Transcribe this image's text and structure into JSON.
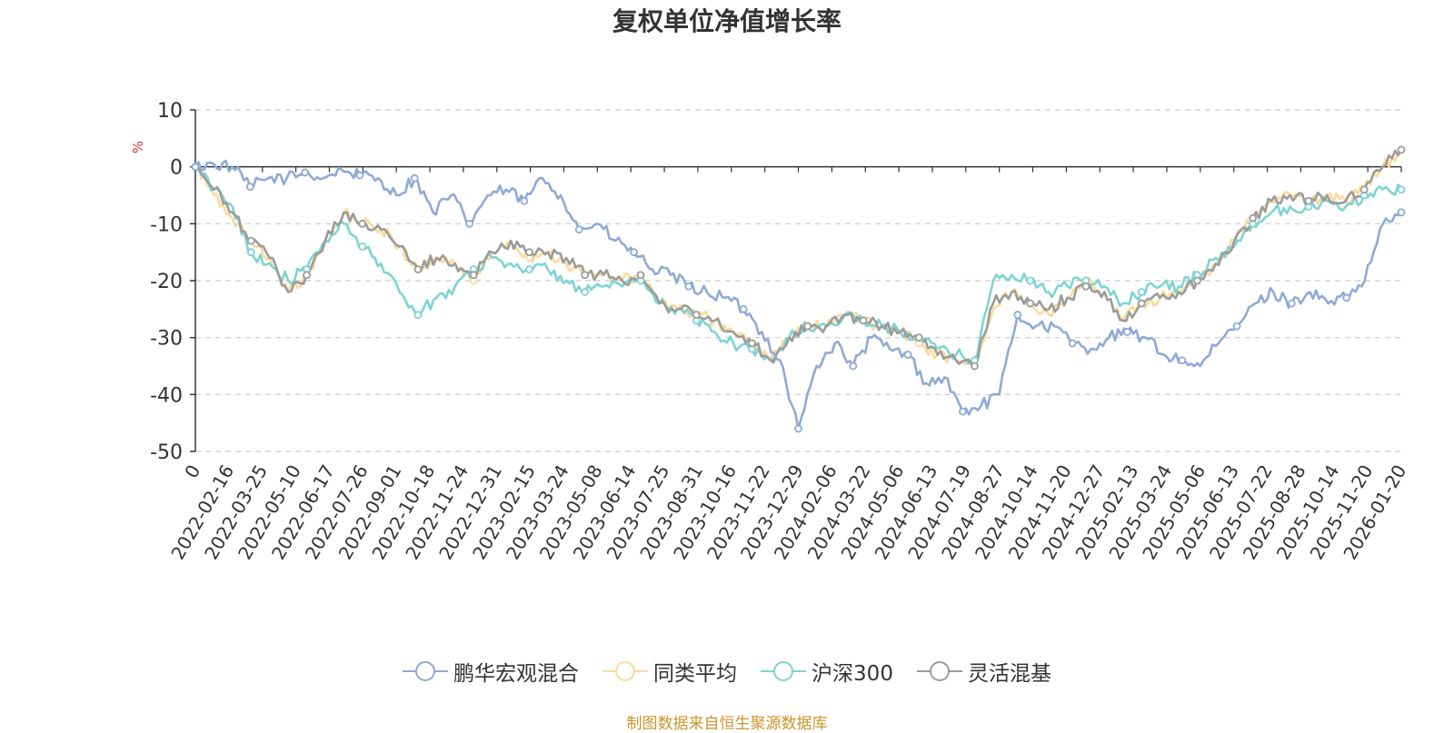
{
  "title": "复权单位净值增长率",
  "source": "制图数据来自恒生聚源数据库",
  "legend": {
    "items": [
      {
        "label": "鹏华宏观混合",
        "color": "#8eaad6"
      },
      {
        "label": "同类平均",
        "color": "#ffd99a"
      },
      {
        "label": "沪深300",
        "color": "#7fd3d3"
      },
      {
        "label": "灵活混基",
        "color": "#9b9b9b"
      }
    ]
  },
  "chart_data": {
    "type": "line",
    "title": "复权单位净值增长率",
    "ylabel": "%",
    "ylim": [
      -50,
      10
    ],
    "yticks": [
      10,
      0,
      -10,
      -20,
      -30,
      -40,
      -50
    ],
    "grid": true,
    "x_tick_labels": [
      "0",
      "2022-02-16",
      "2022-03-25",
      "2022-05-10",
      "2022-06-17",
      "2022-07-26",
      "2022-09-01",
      "2022-10-18",
      "2022-11-24",
      "2022-12-31",
      "2023-02-15",
      "2023-03-24",
      "2023-05-08",
      "2023-06-14",
      "2023-07-25",
      "2023-08-31",
      "2023-10-16",
      "2023-11-22",
      "2023-12-29",
      "2024-02-06",
      "2024-03-22",
      "2024-05-06",
      "2024-06-13",
      "2024-07-19",
      "2024-08-27",
      "2024-10-14",
      "2024-11-20",
      "2024-12-27",
      "2025-02-13",
      "2025-03-24",
      "2025-05-06",
      "2025-06-13",
      "2025-07-22",
      "2025-08-28",
      "2025-10-14",
      "2025-11-20",
      "2026-01-20"
    ],
    "series": [
      {
        "name": "鹏华宏观混合",
        "color": "#8eaad6",
        "values": [
          0,
          0.5,
          0,
          -3.5,
          -2,
          -2,
          -1,
          -2,
          -0.5,
          -1.5,
          -2,
          -5,
          -2,
          -8,
          -5,
          -10,
          -5,
          -4,
          -6,
          -2,
          -5,
          -11,
          -10,
          -13,
          -15,
          -18,
          -19,
          -21,
          -22,
          -23,
          -25,
          -29,
          -34,
          -46,
          -35,
          -31,
          -35,
          -30,
          -32,
          -33,
          -38,
          -37,
          -43,
          -42,
          -40,
          -26,
          -28,
          -28,
          -31,
          -32,
          -30,
          -29,
          -30,
          -33,
          -34,
          -35,
          -31,
          -28,
          -24,
          -22,
          -24,
          -22,
          -24,
          -23,
          -20,
          -10,
          -8
        ]
      },
      {
        "name": "同类平均",
        "color": "#ffd99a",
        "values": [
          0,
          -5,
          -9,
          -13,
          -16,
          -22,
          -19,
          -13,
          -8,
          -10,
          -11,
          -14,
          -18,
          -16,
          -17,
          -20,
          -15,
          -13,
          -16,
          -15,
          -17,
          -19,
          -19,
          -20,
          -19,
          -24,
          -25,
          -26,
          -27,
          -29,
          -31,
          -34,
          -30,
          -28,
          -28,
          -26,
          -27,
          -28,
          -29,
          -31,
          -33,
          -34,
          -35,
          -25,
          -22,
          -24,
          -26,
          -23,
          -20,
          -22,
          -27,
          -24,
          -23,
          -22,
          -20,
          -17,
          -13,
          -9,
          -6,
          -5,
          -6,
          -5,
          -6,
          -4,
          0,
          3
        ]
      },
      {
        "name": "沪深300",
        "color": "#7fd3d3",
        "values": [
          0,
          -4,
          -7,
          -15,
          -17,
          -20,
          -18,
          -13,
          -10,
          -14,
          -17,
          -22,
          -26,
          -23,
          -21,
          -18,
          -16,
          -17,
          -18,
          -18,
          -20,
          -22,
          -21,
          -21,
          -20,
          -24,
          -25,
          -27,
          -29,
          -31,
          -32,
          -34,
          -30,
          -28,
          -28,
          -26,
          -27,
          -28,
          -29,
          -30,
          -32,
          -33,
          -34,
          -20,
          -19,
          -20,
          -22,
          -21,
          -20,
          -21,
          -24,
          -22,
          -21,
          -21,
          -19,
          -16,
          -14,
          -10,
          -8,
          -7,
          -7,
          -6,
          -7,
          -5,
          -4,
          -4
        ]
      },
      {
        "name": "灵活混基",
        "color": "#9b9b9b",
        "values": [
          0,
          -4,
          -8,
          -13,
          -16,
          -22,
          -19,
          -13,
          -8,
          -10,
          -11,
          -14,
          -18,
          -16,
          -17,
          -19,
          -15,
          -13,
          -15,
          -15,
          -16,
          -19,
          -19,
          -20,
          -19,
          -24,
          -25,
          -26,
          -27,
          -29,
          -31,
          -34,
          -30,
          -28,
          -28,
          -26,
          -27,
          -28,
          -29,
          -30,
          -33,
          -34,
          -35,
          -24,
          -22,
          -24,
          -25,
          -23,
          -21,
          -22,
          -27,
          -24,
          -23,
          -22,
          -20,
          -17,
          -13,
          -9,
          -6,
          -5,
          -6,
          -5,
          -6,
          -4,
          0,
          3
        ]
      }
    ]
  }
}
